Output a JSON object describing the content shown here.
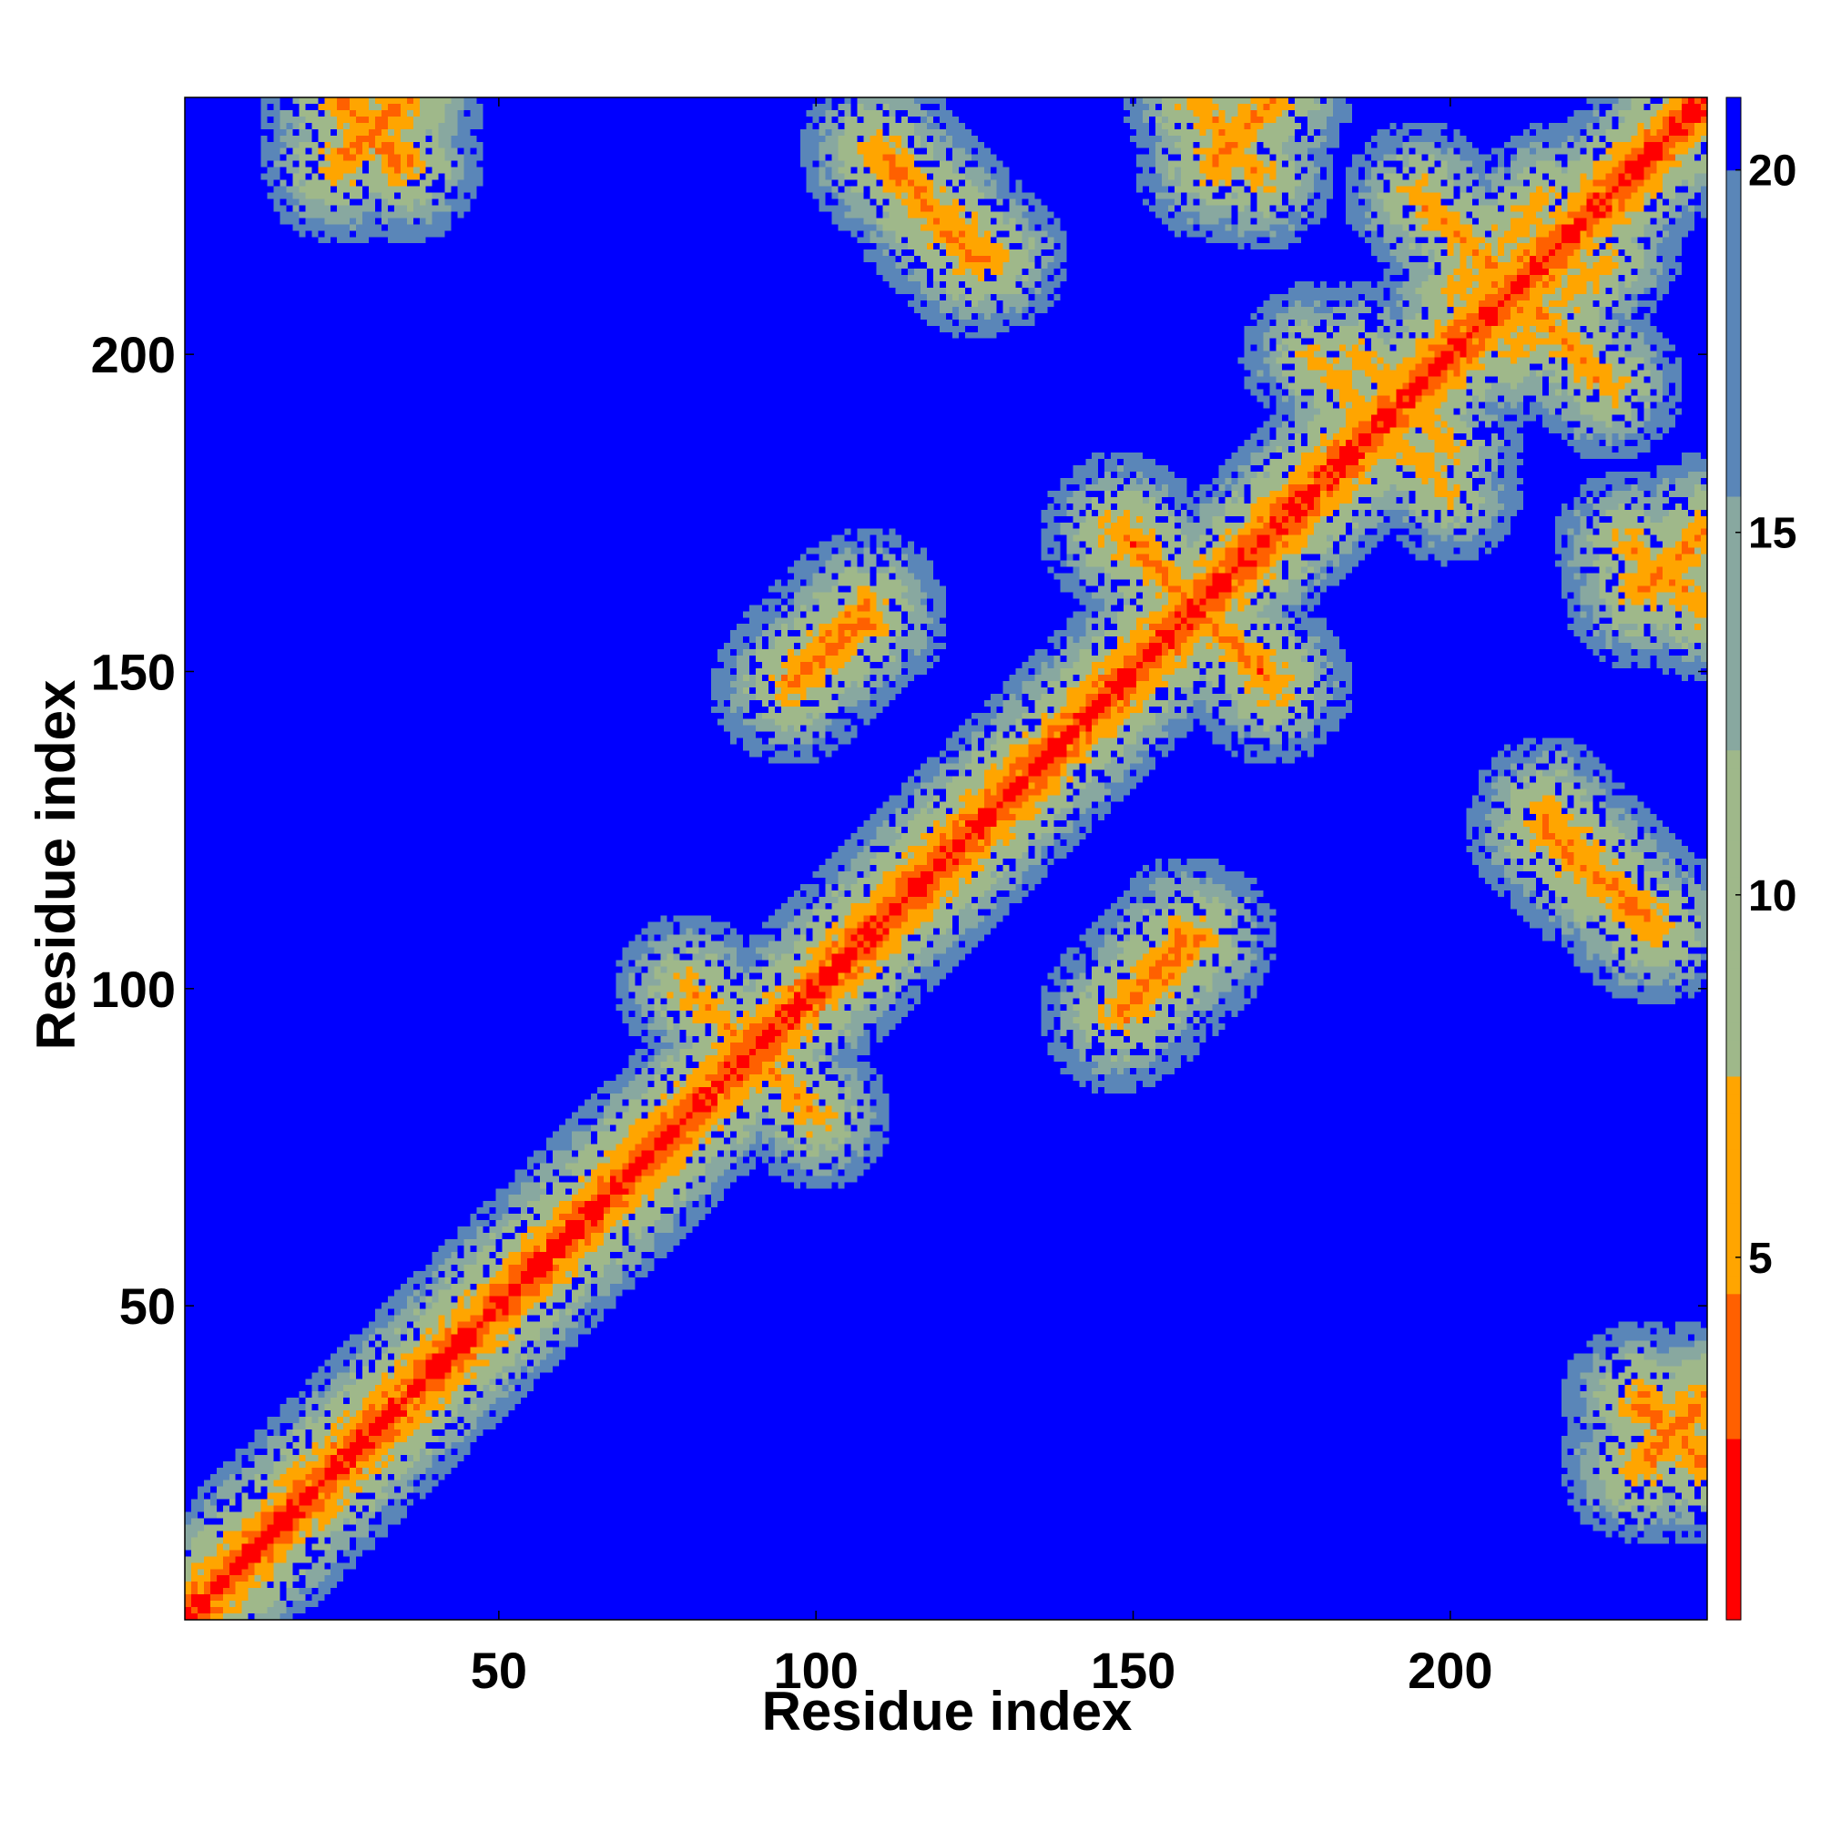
{
  "chart_data": {
    "type": "heatmap",
    "title": "",
    "xlabel": "Residue index",
    "ylabel": "Residue index",
    "n_residues": 240,
    "xlim": [
      1,
      240
    ],
    "ylim": [
      1,
      240
    ],
    "x_ticks": [
      50,
      100,
      150,
      200
    ],
    "y_ticks": [
      50,
      100,
      150,
      200
    ],
    "x_tick_labels": [
      "50",
      "100",
      "150",
      "200"
    ],
    "y_tick_labels": [
      "50",
      "100",
      "150",
      "200"
    ],
    "colorbar": {
      "range": [
        0,
        21
      ],
      "ticks": [
        5,
        10,
        15,
        20
      ],
      "tick_labels": [
        "5",
        "10",
        "15",
        "20"
      ],
      "colors": [
        "#ff0000",
        "#ff6000",
        "#ffa500",
        "#9fb88a",
        "#88a8a0",
        "#5a86b8",
        "#0000ff"
      ]
    },
    "value_meaning": "distance between residue pairs; low values red, high values (>=20) blue",
    "diagonal_value": 1,
    "background_value": 21,
    "contact_bands": [
      {
        "x": [
          2,
          240
        ],
        "y": [
          2,
          240
        ],
        "orientation": "parallel",
        "min_value": 2
      },
      {
        "x": [
          25,
          35
        ],
        "y": [
          230,
          240
        ],
        "orientation": "parallel",
        "min_value": 4
      },
      {
        "x": [
          110,
          128
        ],
        "y": [
          215,
          232
        ],
        "orientation": "antiparallel",
        "min_value": 5
      },
      {
        "x": [
          163,
          172
        ],
        "y": [
          230,
          240
        ],
        "orientation": "parallel",
        "min_value": 4
      },
      {
        "x": [
          195,
          225
        ],
        "y": [
          195,
          225
        ],
        "orientation": "antiparallel",
        "min_value": 5
      },
      {
        "x": [
          200,
          215
        ],
        "y": [
          210,
          225
        ],
        "orientation": "parallel",
        "min_value": 6
      },
      {
        "x": [
          185,
          192
        ],
        "y": [
          195,
          200
        ],
        "orientation": "antiparallel",
        "min_value": 6
      },
      {
        "x": [
          190,
          200
        ],
        "y": [
          178,
          188
        ],
        "orientation": "antiparallel",
        "min_value": 6
      },
      {
        "x": [
          228,
          240
        ],
        "y": [
          160,
          170
        ],
        "orientation": "antiparallel",
        "min_value": 5
      },
      {
        "x": [
          148,
          172
        ],
        "y": [
          148,
          172
        ],
        "orientation": "antiparallel",
        "min_value": 4
      },
      {
        "x": [
          96,
          108
        ],
        "y": [
          148,
          158
        ],
        "orientation": "parallel",
        "min_value": 4
      },
      {
        "x": [
          150,
          160
        ],
        "y": [
          98,
          108
        ],
        "orientation": "parallel",
        "min_value": 4
      },
      {
        "x": [
          215,
          232
        ],
        "y": [
          110,
          125
        ],
        "orientation": "antiparallel",
        "min_value": 4
      },
      {
        "x": [
          80,
          100
        ],
        "y": [
          80,
          100
        ],
        "orientation": "antiparallel",
        "min_value": 5
      },
      {
        "x": [
          230,
          240
        ],
        "y": [
          25,
          35
        ],
        "orientation": "antiparallel",
        "min_value": 4
      }
    ],
    "grid": false,
    "legend": "colorbar-right"
  }
}
